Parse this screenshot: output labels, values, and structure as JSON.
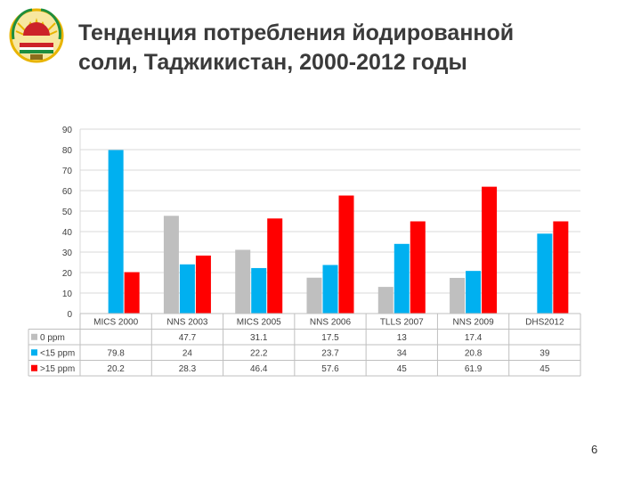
{
  "slide": {
    "title_line1": "Тенденция потребления йодированной",
    "title_line2": "соли, Таджикистан, 2000-2012 годы",
    "page_number": "6"
  },
  "emblem": {
    "icon": "national-emblem-icon",
    "colors": [
      "#cc2229",
      "#e8b400",
      "#1e8e3e"
    ]
  },
  "chart_data": {
    "type": "bar",
    "categories": [
      "MICS 2000",
      "NNS 2003",
      "MICS 2005",
      "NNS 2006",
      "TLLS 2007",
      "NNS 2009",
      "DHS2012"
    ],
    "series": [
      {
        "name": "0 ppm",
        "color": "#bfbfbf",
        "values": [
          null,
          47.7,
          31.1,
          17.5,
          13,
          17.4,
          null
        ]
      },
      {
        "name": "<15 ppm",
        "color": "#00b0f0",
        "values": [
          79.8,
          24,
          22.2,
          23.7,
          34,
          20.8,
          39
        ]
      },
      {
        "name": ">15 ppm",
        "color": "#ff0000",
        "values": [
          20.2,
          28.3,
          46.4,
          57.6,
          45,
          61.9,
          45
        ]
      }
    ],
    "ylim": [
      0,
      90
    ],
    "yticks": [
      "0",
      "10",
      "20",
      "30",
      "40",
      "50",
      "60",
      "70",
      "80",
      "90"
    ],
    "grid": true,
    "legend": "data-table",
    "table_rows": [
      {
        "label": "0 ppm",
        "cells": [
          "",
          "47.7",
          "31.1",
          "17.5",
          "13",
          "17.4",
          ""
        ]
      },
      {
        "label": "<15 ppm",
        "cells": [
          "79.8",
          "24",
          "22.2",
          "23.7",
          "34",
          "20.8",
          "39"
        ]
      },
      {
        "label": ">15 ppm",
        "cells": [
          "20.2",
          "28.3",
          "46.4",
          "57.6",
          "45",
          "61.9",
          "45"
        ]
      }
    ]
  }
}
